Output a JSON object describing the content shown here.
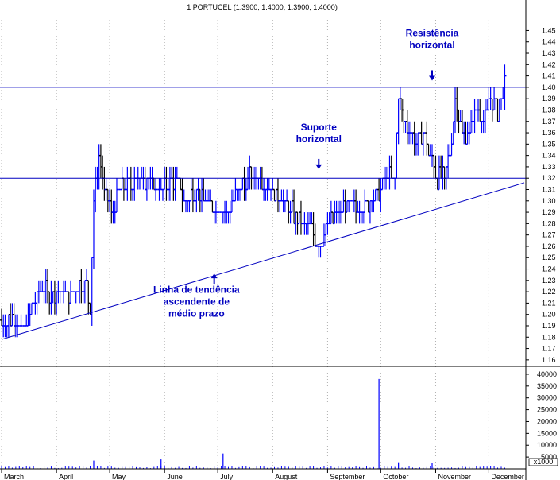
{
  "chart_data": {
    "type": "ohlc",
    "title": "1 PORTUCEL (1.3900, 1.4000, 1.3900, 1.4000)",
    "colors": {
      "up": "#0000ff",
      "down": "#000000",
      "line": "#0000c0",
      "annotation": "#0000c0",
      "grid": "#b0b0b0",
      "volume": "#0000ff"
    },
    "price_axis": {
      "ylim": [
        1.155,
        1.465
      ],
      "ticks": [
        "1.16",
        "1.17",
        "1.18",
        "1.19",
        "1.20",
        "1.21",
        "1.22",
        "1.23",
        "1.24",
        "1.25",
        "1.26",
        "1.27",
        "1.28",
        "1.29",
        "1.30",
        "1.31",
        "1.32",
        "1.33",
        "1.34",
        "1.35",
        "1.36",
        "1.37",
        "1.38",
        "1.39",
        "1.40",
        "1.41",
        "1.42",
        "1.43",
        "1.44",
        "1.45"
      ]
    },
    "volume_axis": {
      "ylim": [
        0,
        43000
      ],
      "ticks": [
        "5000",
        "10000",
        "15000",
        "20000",
        "25000",
        "30000",
        "35000",
        "40000"
      ],
      "unit_label": "x1000"
    },
    "months": [
      {
        "label": "March",
        "day": 0
      },
      {
        "label": "April",
        "day": 31
      },
      {
        "label": "May",
        "day": 61
      },
      {
        "label": "June",
        "day": 92
      },
      {
        "label": "July",
        "day": 122
      },
      {
        "label": "August",
        "day": 153
      },
      {
        "label": "September",
        "day": 184
      },
      {
        "label": "October",
        "day": 214
      },
      {
        "label": "November",
        "day": 245
      },
      {
        "label": "December",
        "day": 275
      }
    ],
    "day_range": [
      0,
      295
    ],
    "resistance_level": 1.4,
    "support_level": 1.32,
    "trendline": {
      "start": {
        "day": 0,
        "price": 1.178
      },
      "end": {
        "day": 295,
        "price": 1.316
      }
    },
    "price_knots": [
      [
        0,
        1.195
      ],
      [
        8,
        1.195
      ],
      [
        12,
        1.185
      ],
      [
        16,
        1.2
      ],
      [
        22,
        1.22
      ],
      [
        30,
        1.22
      ],
      [
        40,
        1.22
      ],
      [
        47,
        1.23
      ],
      [
        50,
        1.21
      ],
      [
        52,
        1.3
      ],
      [
        55,
        1.34
      ],
      [
        58,
        1.31
      ],
      [
        62,
        1.29
      ],
      [
        66,
        1.31
      ],
      [
        70,
        1.31
      ],
      [
        76,
        1.32
      ],
      [
        82,
        1.32
      ],
      [
        88,
        1.31
      ],
      [
        92,
        1.31
      ],
      [
        98,
        1.32
      ],
      [
        104,
        1.3
      ],
      [
        110,
        1.31
      ],
      [
        116,
        1.3
      ],
      [
        122,
        1.29
      ],
      [
        128,
        1.29
      ],
      [
        134,
        1.31
      ],
      [
        140,
        1.32
      ],
      [
        146,
        1.32
      ],
      [
        152,
        1.31
      ],
      [
        158,
        1.3
      ],
      [
        164,
        1.29
      ],
      [
        170,
        1.28
      ],
      [
        176,
        1.27
      ],
      [
        180,
        1.26
      ],
      [
        184,
        1.28
      ],
      [
        190,
        1.29
      ],
      [
        196,
        1.3
      ],
      [
        202,
        1.29
      ],
      [
        208,
        1.3
      ],
      [
        214,
        1.31
      ],
      [
        218,
        1.32
      ],
      [
        222,
        1.32
      ],
      [
        224,
        1.39
      ],
      [
        227,
        1.37
      ],
      [
        230,
        1.36
      ],
      [
        234,
        1.35
      ],
      [
        238,
        1.36
      ],
      [
        242,
        1.34
      ],
      [
        246,
        1.32
      ],
      [
        250,
        1.32
      ],
      [
        254,
        1.35
      ],
      [
        256,
        1.39
      ],
      [
        260,
        1.36
      ],
      [
        264,
        1.36
      ],
      [
        268,
        1.38
      ],
      [
        272,
        1.37
      ],
      [
        276,
        1.39
      ],
      [
        280,
        1.38
      ],
      [
        284,
        1.4
      ]
    ],
    "volume_spikes": [
      {
        "day": 52,
        "volume": 3500
      },
      {
        "day": 90,
        "volume": 4000
      },
      {
        "day": 125,
        "volume": 6500
      },
      {
        "day": 213,
        "volume": 38000
      },
      {
        "day": 224,
        "volume": 2800
      },
      {
        "day": 243,
        "volume": 2500
      }
    ],
    "annotations": [
      {
        "id": "resistance",
        "lines": [
          "Resistência",
          "horizontal"
        ],
        "day": 243,
        "price": 1.445,
        "arrow_day": 243,
        "arrow_price": 1.408,
        "arrow_dir": "down"
      },
      {
        "id": "support",
        "lines": [
          "Suporte",
          "horizontal"
        ],
        "day": 179,
        "price": 1.362,
        "arrow_day": 179,
        "arrow_price": 1.33,
        "arrow_dir": "down"
      },
      {
        "id": "trend",
        "lines": [
          "Linha de tendência",
          "ascendente de",
          "médio prazo"
        ],
        "day": 110,
        "price": 1.219,
        "arrow_day": 120,
        "arrow_price": 1.234,
        "arrow_dir": "up"
      }
    ]
  }
}
